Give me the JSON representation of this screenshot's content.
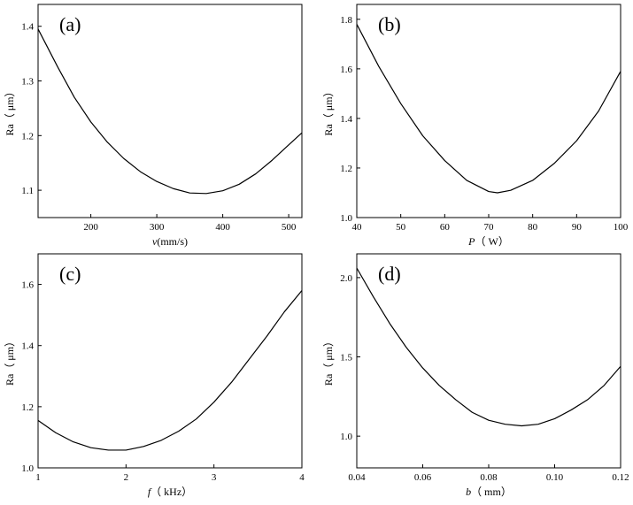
{
  "chart_data": [
    {
      "type": "line",
      "panel_label": "(a)",
      "xlabel": "v(mm/s)",
      "xlabel_italic": "v",
      "xlabel_rest": "(mm/s)",
      "ylabel": "Ra（ μm）",
      "xlim": [
        120,
        520
      ],
      "ylim": [
        1.05,
        1.44
      ],
      "xticks": [
        200,
        300,
        400,
        500
      ],
      "xtick_labels": [
        "200",
        "300",
        "400",
        "500"
      ],
      "yticks": [
        1.1,
        1.2,
        1.3,
        1.4
      ],
      "ytick_labels": [
        "1.1",
        "1.2",
        "1.3",
        "1.4"
      ],
      "grid": false,
      "series": [
        {
          "x": [
            120,
            150,
            175,
            200,
            225,
            250,
            275,
            300,
            325,
            350,
            375,
            400,
            425,
            450,
            475,
            500,
            520
          ],
          "y": [
            1.395,
            1.325,
            1.27,
            1.225,
            1.188,
            1.158,
            1.134,
            1.116,
            1.103,
            1.095,
            1.094,
            1.099,
            1.111,
            1.13,
            1.155,
            1.183,
            1.205
          ]
        }
      ]
    },
    {
      "type": "line",
      "panel_label": "(b)",
      "xlabel": "P（ W）",
      "xlabel_italic": "P",
      "xlabel_rest": "（ W）",
      "ylabel": "Ra（ μm）",
      "xlim": [
        40,
        100
      ],
      "ylim": [
        1.0,
        1.86
      ],
      "xticks": [
        40,
        50,
        60,
        70,
        80,
        90,
        100
      ],
      "xtick_labels": [
        "40",
        "50",
        "60",
        "70",
        "80",
        "90",
        "100"
      ],
      "yticks": [
        1.0,
        1.2,
        1.4,
        1.6,
        1.8
      ],
      "ytick_labels": [
        "1.0",
        "1.2",
        "1.4",
        "1.6",
        "1.8"
      ],
      "grid": false,
      "series": [
        {
          "x": [
            40,
            45,
            50,
            55,
            60,
            65,
            70,
            72,
            75,
            80,
            85,
            90,
            95,
            100
          ],
          "y": [
            1.78,
            1.61,
            1.46,
            1.33,
            1.23,
            1.15,
            1.105,
            1.1,
            1.11,
            1.15,
            1.22,
            1.31,
            1.43,
            1.59
          ]
        }
      ]
    },
    {
      "type": "line",
      "panel_label": "(c)",
      "xlabel": "f（ kHz）",
      "xlabel_italic": "f",
      "xlabel_rest": "（ kHz）",
      "ylabel": "Ra（ μm）",
      "xlim": [
        1,
        4
      ],
      "ylim": [
        1.0,
        1.7
      ],
      "xticks": [
        1,
        2,
        3,
        4
      ],
      "xtick_labels": [
        "1",
        "2",
        "3",
        "4"
      ],
      "yticks": [
        1.0,
        1.2,
        1.4,
        1.6
      ],
      "ytick_labels": [
        "1.0",
        "1.2",
        "1.4",
        "1.6"
      ],
      "grid": false,
      "series": [
        {
          "x": [
            1.0,
            1.2,
            1.4,
            1.6,
            1.8,
            2.0,
            2.2,
            2.4,
            2.6,
            2.8,
            3.0,
            3.2,
            3.4,
            3.6,
            3.8,
            4.0
          ],
          "y": [
            1.155,
            1.115,
            1.085,
            1.066,
            1.058,
            1.058,
            1.07,
            1.09,
            1.12,
            1.16,
            1.215,
            1.28,
            1.355,
            1.43,
            1.51,
            1.58
          ]
        }
      ]
    },
    {
      "type": "line",
      "panel_label": "(d)",
      "xlabel": "b（ mm）",
      "xlabel_italic": "b",
      "xlabel_rest": "（ mm）",
      "ylabel": "Ra（ μm）",
      "xlim": [
        0.04,
        0.12
      ],
      "ylim": [
        0.8,
        2.15
      ],
      "xticks": [
        0.04,
        0.06,
        0.08,
        0.1,
        0.12
      ],
      "xtick_labels": [
        "0.04",
        "0.06",
        "0.08",
        "0.10",
        "0.12"
      ],
      "yticks": [
        1.0,
        1.5,
        2.0
      ],
      "ytick_labels": [
        "1.0",
        "1.5",
        "2.0"
      ],
      "grid": false,
      "series": [
        {
          "x": [
            0.04,
            0.045,
            0.05,
            0.055,
            0.06,
            0.065,
            0.07,
            0.075,
            0.08,
            0.085,
            0.09,
            0.095,
            0.1,
            0.105,
            0.11,
            0.115,
            0.12
          ],
          "y": [
            2.06,
            1.88,
            1.71,
            1.56,
            1.43,
            1.32,
            1.23,
            1.15,
            1.1,
            1.075,
            1.065,
            1.075,
            1.11,
            1.165,
            1.23,
            1.32,
            1.44
          ]
        }
      ]
    }
  ]
}
